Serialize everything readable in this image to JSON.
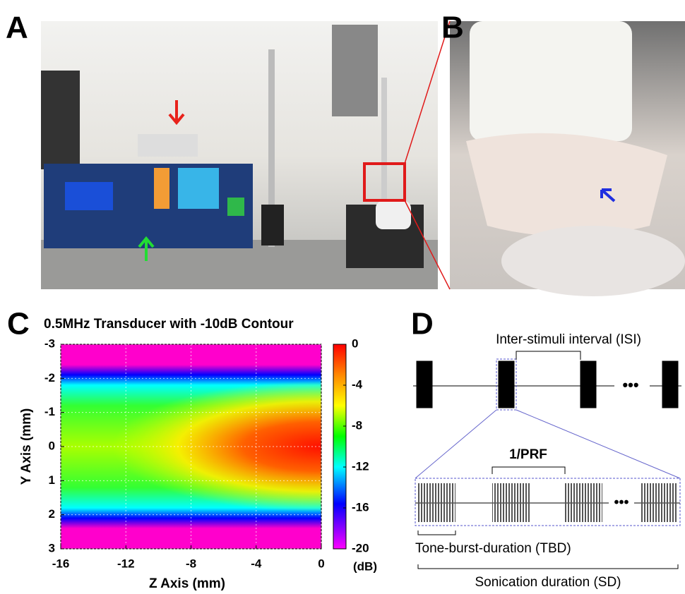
{
  "panel_labels": [
    "A",
    "B",
    "C",
    "D"
  ],
  "heatmap": {
    "type": "heatmap",
    "title": "0.5MHz Transducer with -10dB Contour",
    "xlabel": "Z Axis (mm)",
    "ylabel": "Y Axis (mm)",
    "xlim": [
      -16,
      0
    ],
    "ylim": [
      -3,
      3
    ],
    "xticks": [
      -16,
      -12,
      -8,
      -4,
      0
    ],
    "yticks": [
      -3,
      -2,
      -1,
      0,
      1,
      2,
      3
    ],
    "grid": true,
    "colorbar": {
      "label": "(dB)",
      "lim": [
        -20,
        0
      ],
      "ticks": [
        0,
        -4,
        -8,
        -12,
        -16,
        -20
      ]
    }
  },
  "diagram": {
    "isi": "Inter-stimuli interval (ISI)",
    "prf": "1/PRF",
    "tbd": "Tone-burst-duration (TBD)",
    "sd": "Sonication duration (SD)"
  }
}
